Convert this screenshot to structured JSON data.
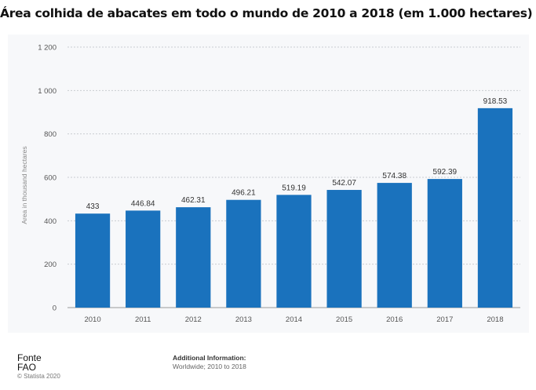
{
  "title": "Área colhida de abacates em todo o mundo de 2010 a 2018 (em 1.000 hectares) *",
  "chart_data": {
    "type": "bar",
    "categories": [
      "2010",
      "2011",
      "2012",
      "2013",
      "2014",
      "2015",
      "2016",
      "2017",
      "2018"
    ],
    "values": [
      433,
      446.84,
      462.31,
      496.21,
      519.19,
      542.07,
      574.38,
      592.39,
      918.53
    ],
    "data_labels": [
      "433",
      "446.84",
      "462.31",
      "496.21",
      "519.19",
      "542.07",
      "574.38",
      "592.39",
      "918.53"
    ],
    "ylabel": "Area in thousand hectares",
    "xlabel": "",
    "ylim": [
      0,
      1200
    ],
    "yticks": [
      0,
      200,
      400,
      600,
      800,
      1000,
      1200
    ],
    "ytick_labels": [
      "0",
      "200",
      "400",
      "600",
      "800",
      "1 000",
      "1 200"
    ],
    "grid": "horizontal-dashed",
    "bar_color": "#1a72bd",
    "legend": "none"
  },
  "source": {
    "heading": "Fonte",
    "name": "FAO",
    "copyright": "© Statista 2020"
  },
  "additional_info": {
    "heading": "Additional Information:",
    "text": "Worldwide; 2010 to 2018"
  }
}
